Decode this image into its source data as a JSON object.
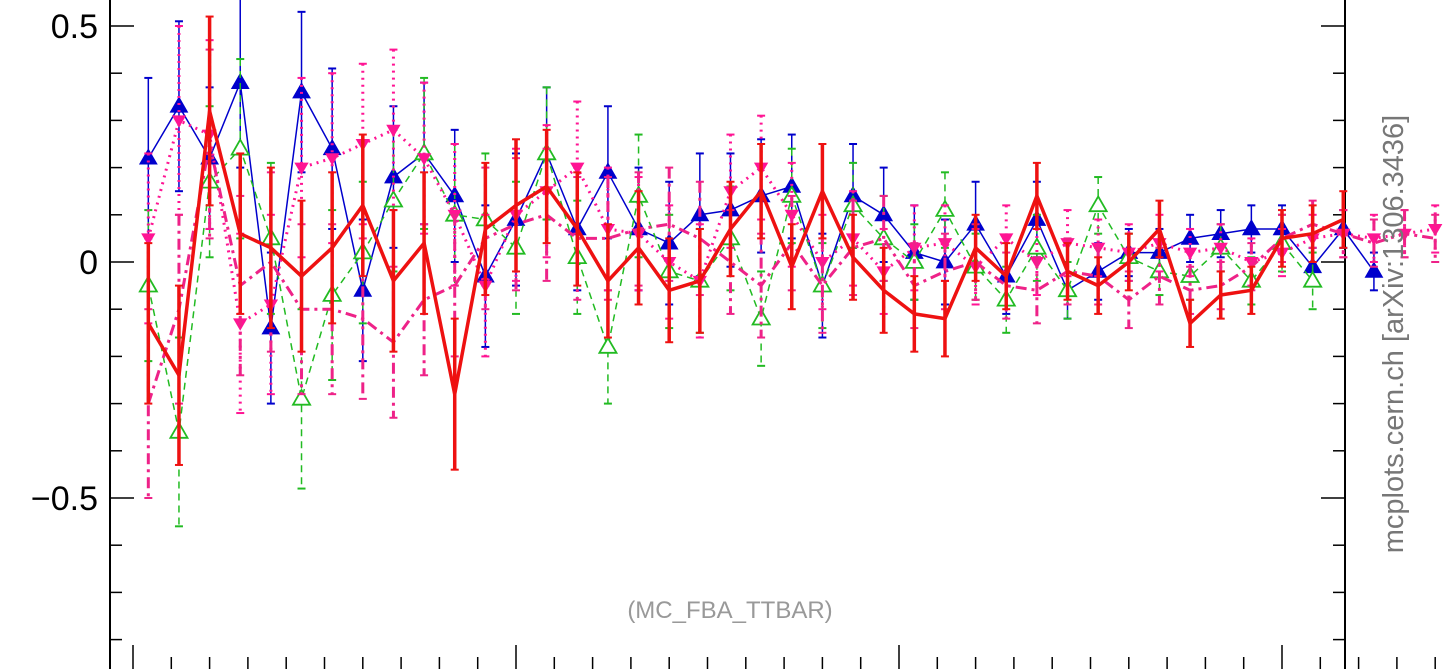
{
  "chart_data": {
    "type": "line",
    "watermark": "mcplots.cern.ch [arXiv:1306.3436]",
    "annotation": "(MC_FBA_TTBAR)",
    "ylim": [
      -0.82,
      0.55
    ],
    "xlim": [
      0,
      40
    ],
    "y_ticks": [
      {
        "value": 0.5,
        "label": "0.5"
      },
      {
        "value": 0,
        "label": "0"
      },
      {
        "value": -0.5,
        "label": "−0.5"
      }
    ],
    "y_minor_step": 0.1,
    "x_major_ticks": [
      0,
      10,
      20,
      30
    ],
    "x_minor_ticks": [
      1,
      2,
      3,
      4,
      5,
      6,
      7,
      8,
      9,
      11,
      12,
      13,
      14,
      15,
      16,
      17,
      18,
      19,
      21,
      22,
      23,
      24,
      25,
      26,
      27,
      28,
      29,
      31,
      32,
      33,
      34,
      35
    ],
    "series": [
      {
        "color": "#0000cc",
        "style": "solid",
        "width": 1.5,
        "marker": "triangle-filled",
        "x": [
          0.4,
          1.2,
          2.0,
          2.8,
          3.6,
          4.4,
          5.2,
          6.0,
          6.8,
          7.6,
          8.4,
          9.2,
          10.0,
          10.8,
          11.6,
          12.4,
          13.2,
          14.0,
          14.8,
          15.6,
          16.4,
          17.2,
          18.0,
          18.8,
          19.6,
          20.4,
          21.2,
          22.0,
          22.8,
          23.6,
          24.4,
          25.2,
          26.0,
          26.8,
          27.6,
          28.4,
          29.2,
          30.0,
          30.8,
          31.6,
          32.4,
          33.2,
          34.0
        ],
        "y": [
          0.22,
          0.33,
          0.22,
          0.38,
          -0.14,
          0.36,
          0.24,
          -0.06,
          0.18,
          0.23,
          0.14,
          -0.03,
          0.09,
          0.23,
          0.07,
          0.19,
          0.07,
          0.04,
          0.1,
          0.11,
          0.14,
          0.16,
          -0.05,
          0.14,
          0.1,
          0.02,
          0.0,
          0.08,
          -0.03,
          0.09,
          -0.06,
          -0.02,
          0.02,
          0.02,
          0.05,
          0.06,
          0.07,
          0.07,
          -0.01,
          0.07,
          -0.02,
          null,
          null
        ],
        "err": [
          0.17,
          0.18,
          0.15,
          0.18,
          0.16,
          0.17,
          0.17,
          0.15,
          0.15,
          0.15,
          0.14,
          0.15,
          0.14,
          0.14,
          0.13,
          0.14,
          0.13,
          0.13,
          0.13,
          0.12,
          0.12,
          0.11,
          0.11,
          0.11,
          0.1,
          0.1,
          0.09,
          0.09,
          0.08,
          0.08,
          0.06,
          0.06,
          0.05,
          0.05,
          0.05,
          0.05,
          0.05,
          0.05,
          0.04,
          0.04,
          0.04,
          null,
          null
        ]
      },
      {
        "color": "#22bb22",
        "style": "dashed",
        "width": 1.5,
        "marker": "triangle-open",
        "x": [
          0.4,
          1.2,
          2.0,
          2.8,
          3.6,
          4.4,
          5.2,
          6.0,
          6.8,
          7.6,
          8.4,
          9.2,
          10.0,
          10.8,
          11.6,
          12.4,
          13.2,
          14.0,
          14.8,
          15.6,
          16.4,
          17.2,
          18.0,
          18.8,
          19.6,
          20.4,
          21.2,
          22.0,
          22.8,
          23.6,
          24.4,
          25.2,
          26.0,
          26.8,
          27.6,
          28.4,
          29.2,
          30.0,
          30.8,
          31.6,
          32.4,
          33.2,
          34.0
        ],
        "y": [
          -0.05,
          -0.36,
          0.17,
          0.24,
          0.05,
          -0.29,
          -0.07,
          0.02,
          0.13,
          0.23,
          0.1,
          0.09,
          0.03,
          0.23,
          0.01,
          -0.18,
          0.14,
          -0.02,
          -0.04,
          0.05,
          -0.12,
          0.14,
          -0.05,
          0.12,
          0.05,
          0.0,
          0.11,
          -0.01,
          -0.08,
          0.03,
          -0.06,
          0.12,
          0.01,
          -0.02,
          -0.03,
          0.03,
          -0.04,
          0.04,
          -0.04,
          null,
          null,
          null,
          null
        ],
        "err": [
          0.16,
          0.2,
          0.16,
          0.19,
          0.16,
          0.19,
          0.18,
          0.15,
          0.15,
          0.16,
          0.15,
          0.14,
          0.14,
          0.14,
          0.12,
          0.12,
          0.13,
          0.12,
          0.11,
          0.11,
          0.1,
          0.1,
          0.09,
          0.09,
          0.09,
          0.08,
          0.08,
          0.07,
          0.07,
          0.07,
          0.06,
          0.06,
          0.05,
          0.05,
          0.05,
          0.05,
          0.05,
          0.06,
          0.06,
          null,
          null,
          null,
          null
        ]
      },
      {
        "color": "#ff1493",
        "style": "dotted",
        "width": 3,
        "marker": "triangle-down-filled",
        "x": [
          0.4,
          1.2,
          2.0,
          2.8,
          3.6,
          4.4,
          5.2,
          6.0,
          6.8,
          7.6,
          8.4,
          9.2,
          10.0,
          10.8,
          11.6,
          12.4,
          13.2,
          14.0,
          14.8,
          15.6,
          16.4,
          17.2,
          18.0,
          18.8,
          19.6,
          20.4,
          21.2,
          22.0,
          22.8,
          23.6,
          24.4,
          25.2,
          26.0,
          26.8,
          27.6,
          28.4,
          29.2,
          30.0,
          30.8,
          31.6,
          32.4,
          33.2,
          34.0
        ],
        "y": [
          0.05,
          0.3,
          0.27,
          -0.13,
          -0.09,
          0.2,
          0.22,
          0.25,
          0.28,
          0.22,
          0.1,
          -0.05,
          0.1,
          0.15,
          0.2,
          0.07,
          0.06,
          0.0,
          -0.04,
          0.15,
          0.2,
          0.1,
          0.0,
          0.05,
          -0.02,
          0.03,
          0.04,
          -0.01,
          0.05,
          0.0,
          0.04,
          0.03,
          0.02,
          0.04,
          0.02,
          0.03,
          0.0,
          0.02,
          0.05,
          0.06,
          0.05,
          0.06,
          0.07
        ],
        "err": [
          0.18,
          0.2,
          0.2,
          0.19,
          0.19,
          0.19,
          0.18,
          0.17,
          0.17,
          0.16,
          0.15,
          0.15,
          0.14,
          0.14,
          0.14,
          0.13,
          0.12,
          0.12,
          0.12,
          0.12,
          0.11,
          0.11,
          0.1,
          0.1,
          0.09,
          0.09,
          0.08,
          0.08,
          0.07,
          0.07,
          0.07,
          0.06,
          0.06,
          0.06,
          0.05,
          0.05,
          0.05,
          0.05,
          0.05,
          0.05,
          0.05,
          0.05,
          0.05
        ]
      },
      {
        "color": "#ee2288",
        "style": "dash-dot",
        "width": 3,
        "marker": "none",
        "x": [
          0.4,
          1.2,
          2.0,
          2.8,
          3.6,
          4.4,
          5.2,
          6.0,
          6.8,
          7.6,
          8.4,
          9.2,
          10.0,
          10.8,
          11.6,
          12.4,
          13.2,
          14.0,
          14.8,
          15.6,
          16.4,
          17.2,
          18.0,
          18.8,
          19.6,
          20.4,
          21.2,
          22.0,
          22.8,
          23.6,
          24.4,
          25.2,
          26.0,
          26.8,
          27.6,
          28.4,
          29.2,
          30.0,
          30.8,
          31.6,
          32.4,
          33.2,
          34.0
        ],
        "y": [
          -0.3,
          -0.1,
          0.25,
          -0.05,
          0.0,
          -0.1,
          -0.1,
          -0.12,
          -0.17,
          -0.08,
          -0.05,
          0.05,
          0.08,
          0.1,
          0.05,
          0.05,
          0.07,
          0.08,
          0.05,
          0.0,
          -0.05,
          0.04,
          -0.05,
          0.03,
          0.05,
          -0.05,
          -0.02,
          0.0,
          -0.05,
          -0.06,
          -0.02,
          -0.03,
          -0.08,
          -0.03,
          -0.06,
          -0.05,
          -0.01,
          0.05,
          0.08,
          0.06,
          0.04,
          0.06,
          0.05
        ],
        "err": [
          0.2,
          0.2,
          0.2,
          0.19,
          0.19,
          0.18,
          0.18,
          0.17,
          0.16,
          0.16,
          0.15,
          0.15,
          0.14,
          0.14,
          0.13,
          0.13,
          0.12,
          0.12,
          0.12,
          0.11,
          0.11,
          0.1,
          0.1,
          0.1,
          0.09,
          0.09,
          0.08,
          0.08,
          0.07,
          0.07,
          0.07,
          0.06,
          0.06,
          0.06,
          0.05,
          0.05,
          0.05,
          0.05,
          0.05,
          0.05,
          0.05,
          0.05,
          0.05
        ]
      },
      {
        "color": "#ee1111",
        "style": "solid",
        "width": 3.5,
        "marker": "none",
        "x": [
          0.4,
          1.2,
          2.0,
          2.8,
          3.6,
          4.4,
          5.2,
          6.0,
          6.8,
          7.6,
          8.4,
          9.2,
          10.0,
          10.8,
          11.6,
          12.4,
          13.2,
          14.0,
          14.8,
          15.6,
          16.4,
          17.2,
          18.0,
          18.8,
          19.6,
          20.4,
          21.2,
          22.0,
          22.8,
          23.6,
          24.4,
          25.2,
          26.0,
          26.8,
          27.6,
          28.4,
          29.2,
          30.0,
          30.8,
          31.6,
          32.4,
          33.2,
          34.0
        ],
        "y": [
          -0.13,
          -0.24,
          0.32,
          0.06,
          0.03,
          -0.03,
          0.03,
          0.12,
          -0.04,
          0.04,
          -0.28,
          0.07,
          0.12,
          0.16,
          0.07,
          -0.04,
          0.03,
          -0.06,
          -0.04,
          0.07,
          0.15,
          -0.01,
          0.15,
          0.01,
          -0.06,
          -0.11,
          -0.12,
          0.03,
          -0.03,
          0.14,
          -0.02,
          -0.05,
          0.0,
          0.07,
          -0.13,
          -0.07,
          -0.06,
          0.05,
          0.06,
          0.09,
          null,
          null,
          null
        ],
        "err": [
          0.17,
          0.19,
          0.2,
          0.17,
          0.17,
          0.16,
          0.16,
          0.15,
          0.15,
          0.15,
          0.16,
          0.14,
          0.14,
          0.12,
          0.12,
          0.12,
          0.12,
          0.11,
          0.11,
          0.1,
          0.1,
          0.09,
          0.1,
          0.09,
          0.09,
          0.08,
          0.08,
          0.07,
          0.07,
          0.07,
          0.06,
          0.06,
          0.06,
          0.06,
          0.05,
          0.05,
          0.05,
          0.06,
          0.06,
          0.06,
          null,
          null,
          null
        ]
      }
    ]
  }
}
